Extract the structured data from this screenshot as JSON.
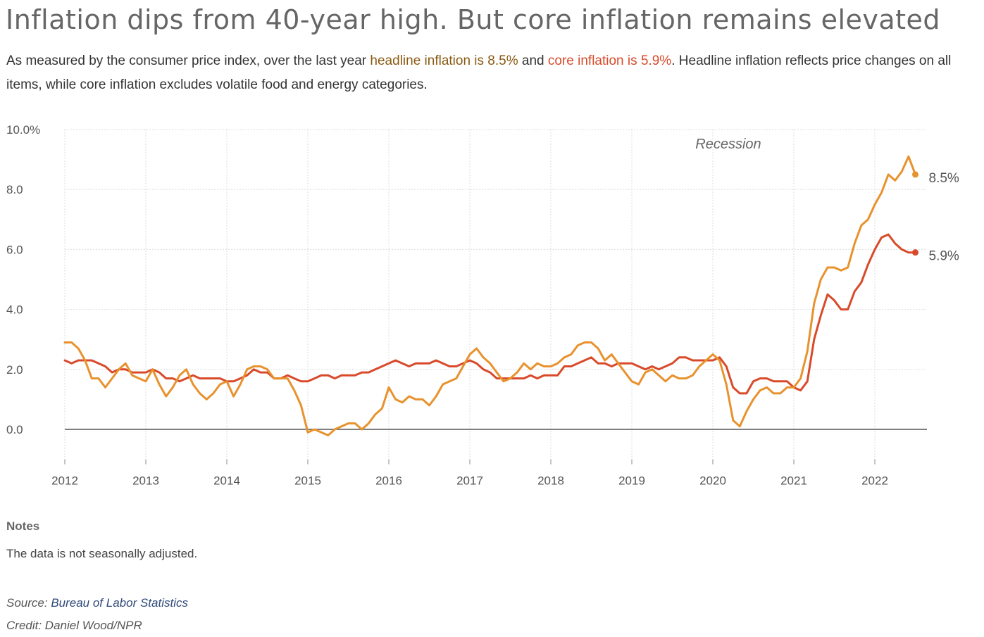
{
  "title": "Inflation dips from 40-year high. But core inflation remains elevated",
  "subtitle": {
    "part1": "As measured by the consumer price index, over the last year ",
    "headline_phrase": "headline inflation is 8.5%",
    "part2": " and ",
    "core_phrase": "core inflation is 5.9%",
    "part3": ". Headline inflation reflects price changes on all items, while core inflation excludes volatile food and energy categories."
  },
  "colors": {
    "headline": "#e8922e",
    "core": "#d84a2a",
    "headline_text": "#8a5a12",
    "core_text": "#d84a2a",
    "grid": "#dddddd",
    "zero_line": "#555555"
  },
  "chart_data": {
    "type": "line",
    "title": "",
    "xlabel": "",
    "ylabel": "",
    "ylim": [
      -1,
      10
    ],
    "xlim": [
      2012,
      2022.64
    ],
    "y_ticks": [
      0,
      2,
      4,
      6,
      8,
      10
    ],
    "y_tick_labels": [
      "0.0",
      "2.0",
      "4.0",
      "6.0",
      "8.0",
      "10.0%"
    ],
    "x_ticks": [
      2012,
      2013,
      2014,
      2015,
      2016,
      2017,
      2018,
      2019,
      2020,
      2021,
      2022
    ],
    "x_tick_labels": [
      "2012",
      "2013",
      "2014",
      "2015",
      "2016",
      "2017",
      "2018",
      "2019",
      "2020",
      "2021",
      "2022"
    ],
    "grid": true,
    "annotation": "Recession",
    "end_labels": {
      "headline": "8.5%",
      "core": "5.9%"
    },
    "x_start": "2012-01",
    "x_step_months": 1,
    "series": [
      {
        "key": "headline",
        "values": [
          2.9,
          2.9,
          2.7,
          2.3,
          1.7,
          1.7,
          1.4,
          1.7,
          2.0,
          2.2,
          1.8,
          1.7,
          1.6,
          2.0,
          1.5,
          1.1,
          1.4,
          1.8,
          2.0,
          1.5,
          1.2,
          1.0,
          1.2,
          1.5,
          1.6,
          1.1,
          1.5,
          2.0,
          2.1,
          2.1,
          2.0,
          1.7,
          1.7,
          1.7,
          1.3,
          0.8,
          -0.1,
          0.0,
          -0.1,
          -0.2,
          0.0,
          0.1,
          0.2,
          0.2,
          0.0,
          0.2,
          0.5,
          0.7,
          1.4,
          1.0,
          0.9,
          1.1,
          1.0,
          1.0,
          0.8,
          1.1,
          1.5,
          1.6,
          1.7,
          2.1,
          2.5,
          2.7,
          2.4,
          2.2,
          1.9,
          1.6,
          1.7,
          1.9,
          2.2,
          2.0,
          2.2,
          2.1,
          2.1,
          2.2,
          2.4,
          2.5,
          2.8,
          2.9,
          2.9,
          2.7,
          2.3,
          2.5,
          2.2,
          1.9,
          1.6,
          1.5,
          1.9,
          2.0,
          1.8,
          1.6,
          1.8,
          1.7,
          1.7,
          1.8,
          2.1,
          2.3,
          2.5,
          2.3,
          1.5,
          0.3,
          0.1,
          0.6,
          1.0,
          1.3,
          1.4,
          1.2,
          1.2,
          1.4,
          1.4,
          1.7,
          2.6,
          4.2,
          5.0,
          5.4,
          5.4,
          5.3,
          5.4,
          6.2,
          6.8,
          7.0,
          7.5,
          7.9,
          8.5,
          8.3,
          8.6,
          9.1,
          8.5
        ]
      },
      {
        "key": "core",
        "values": [
          2.3,
          2.2,
          2.3,
          2.3,
          2.3,
          2.2,
          2.1,
          1.9,
          2.0,
          2.0,
          1.9,
          1.9,
          1.9,
          2.0,
          1.9,
          1.7,
          1.7,
          1.6,
          1.7,
          1.8,
          1.7,
          1.7,
          1.7,
          1.7,
          1.6,
          1.6,
          1.7,
          1.8,
          2.0,
          1.9,
          1.9,
          1.7,
          1.7,
          1.8,
          1.7,
          1.6,
          1.6,
          1.7,
          1.8,
          1.8,
          1.7,
          1.8,
          1.8,
          1.8,
          1.9,
          1.9,
          2.0,
          2.1,
          2.2,
          2.3,
          2.2,
          2.1,
          2.2,
          2.2,
          2.2,
          2.3,
          2.2,
          2.1,
          2.1,
          2.2,
          2.3,
          2.2,
          2.0,
          1.9,
          1.7,
          1.7,
          1.7,
          1.7,
          1.7,
          1.8,
          1.7,
          1.8,
          1.8,
          1.8,
          2.1,
          2.1,
          2.2,
          2.3,
          2.4,
          2.2,
          2.2,
          2.1,
          2.2,
          2.2,
          2.2,
          2.1,
          2.0,
          2.1,
          2.0,
          2.1,
          2.2,
          2.4,
          2.4,
          2.3,
          2.3,
          2.3,
          2.3,
          2.4,
          2.1,
          1.4,
          1.2,
          1.2,
          1.6,
          1.7,
          1.7,
          1.6,
          1.6,
          1.6,
          1.4,
          1.3,
          1.6,
          3.0,
          3.8,
          4.5,
          4.3,
          4.0,
          4.0,
          4.6,
          4.9,
          5.5,
          6.0,
          6.4,
          6.5,
          6.2,
          6.0,
          5.9,
          5.9
        ]
      }
    ]
  },
  "notes": {
    "heading": "Notes",
    "text": "The data is not seasonally adjusted."
  },
  "source": {
    "label": "Source: ",
    "link_text": "Bureau of Labor Statistics"
  },
  "credit": "Credit: Daniel Wood/NPR"
}
